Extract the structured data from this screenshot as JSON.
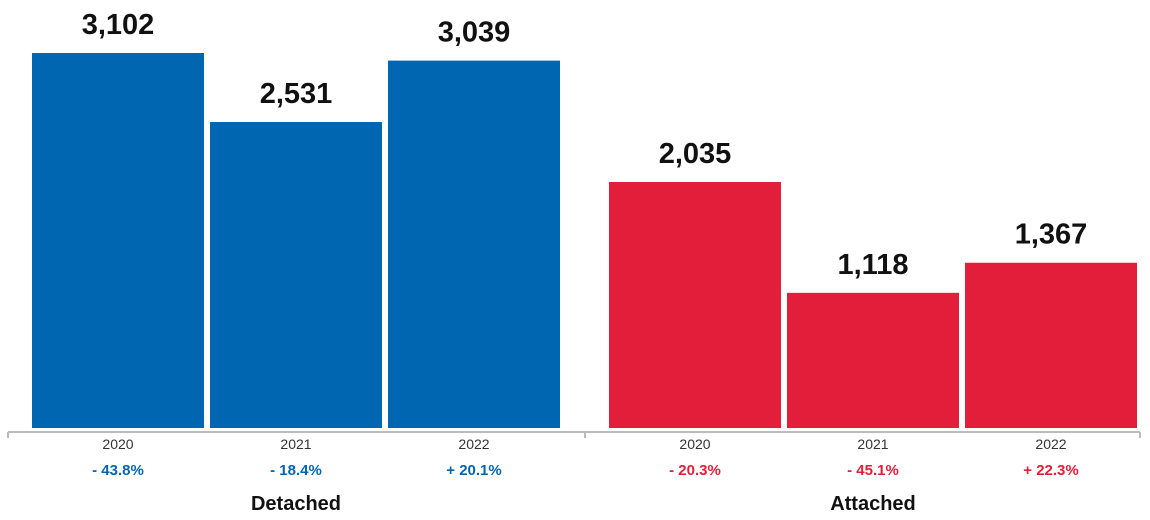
{
  "chart_data": {
    "type": "bar",
    "title": "",
    "xlabel": "",
    "ylabel": "",
    "ylim": [
      0,
      3102
    ],
    "grid": false,
    "legend": "none",
    "groups": [
      {
        "name": "Detached",
        "color": "#0066b2",
        "bars": [
          {
            "year": "2020",
            "value": 3102,
            "value_label": "3,102",
            "change": "- 43.8%"
          },
          {
            "year": "2021",
            "value": 2531,
            "value_label": "2,531",
            "change": "- 18.4%"
          },
          {
            "year": "2022",
            "value": 3039,
            "value_label": "3,039",
            "change": "+ 20.1%"
          }
        ]
      },
      {
        "name": "Attached",
        "color": "#e31e3a",
        "bars": [
          {
            "year": "2020",
            "value": 2035,
            "value_label": "2,035",
            "change": "- 20.3%"
          },
          {
            "year": "2021",
            "value": 1118,
            "value_label": "1,118",
            "change": "- 45.1%"
          },
          {
            "year": "2022",
            "value": 1367,
            "value_label": "1,367",
            "change": "+ 22.3%"
          }
        ]
      }
    ],
    "axis_color": "#bbbbbb"
  }
}
